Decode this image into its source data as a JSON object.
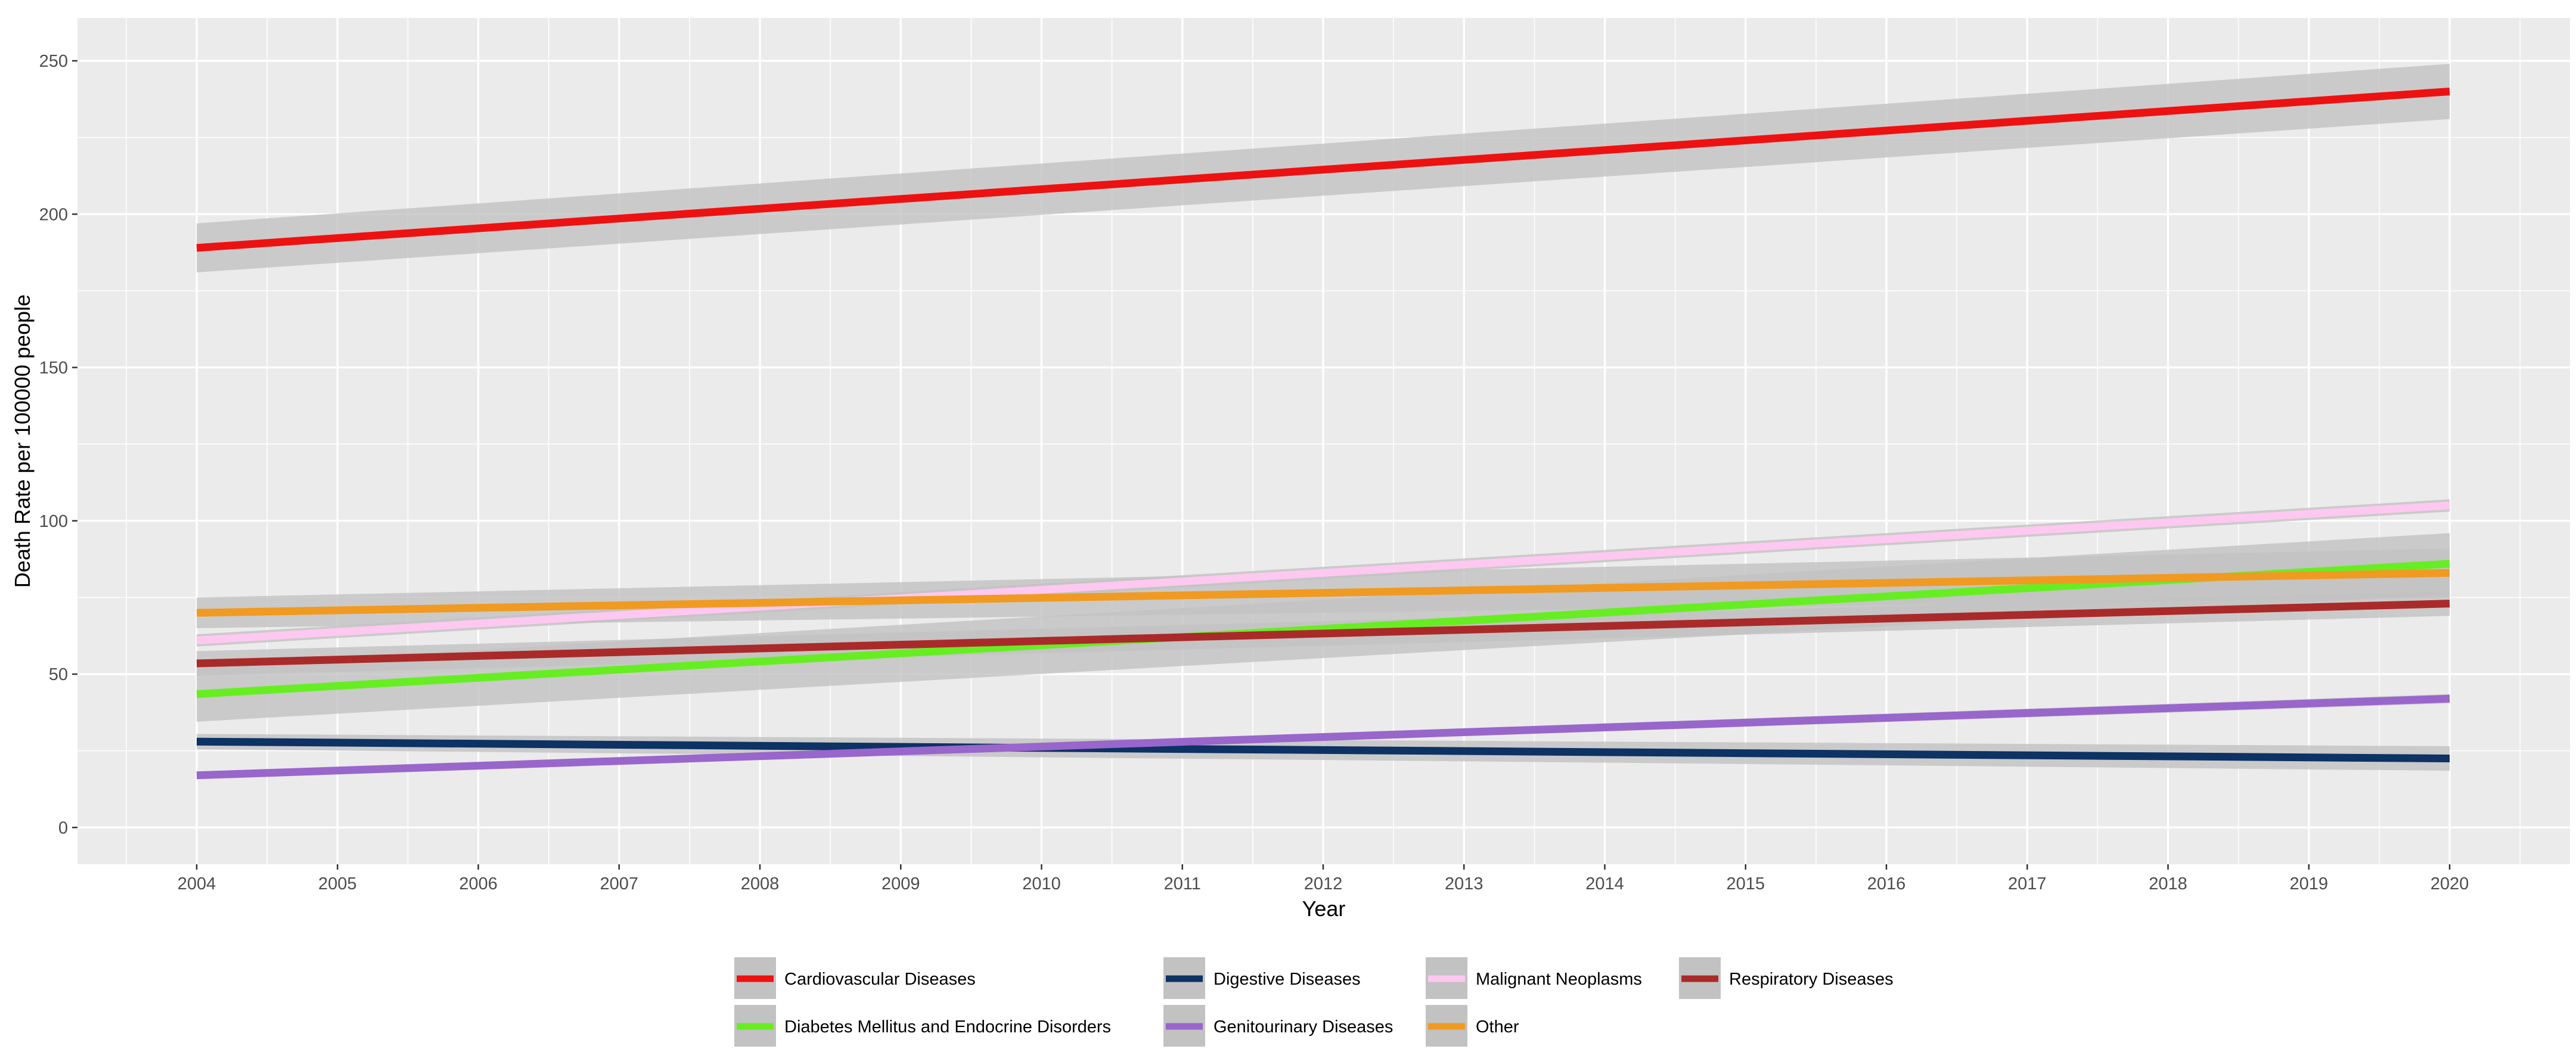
{
  "chart_data": {
    "type": "line",
    "title": "",
    "xlabel": "Year",
    "ylabel": "Death Rate per 100000 people",
    "xlim": [
      2003.2,
      2020.5
    ],
    "ylim": [
      -12,
      264
    ],
    "x_ticks": [
      2004,
      2005,
      2006,
      2007,
      2008,
      2009,
      2010,
      2011,
      2012,
      2013,
      2014,
      2015,
      2016,
      2017,
      2018,
      2019,
      2020
    ],
    "y_ticks": [
      0,
      50,
      100,
      150,
      200,
      250
    ],
    "grid": true,
    "panel_background": "#ebebeb",
    "ribbon_color": "#c2c2c2",
    "legend_position": "bottom",
    "series": [
      {
        "name": "Cardiovascular Diseases",
        "color": "#ee1111",
        "x": [
          2004,
          2020
        ],
        "y": [
          189,
          240
        ],
        "ci_start": 8,
        "ci_end": 9
      },
      {
        "name": "Diabetes Mellitus and Endocrine Disorders",
        "color": "#66ee22",
        "x": [
          2004,
          2020
        ],
        "y": [
          43.5,
          86
        ],
        "ci_start": 9,
        "ci_end": 10
      },
      {
        "name": "Digestive Diseases",
        "color": "#0d3264",
        "x": [
          2004,
          2020
        ],
        "y": [
          28,
          22.5
        ],
        "ci_start": 2.5,
        "ci_end": 4
      },
      {
        "name": "Genitourinary Diseases",
        "color": "#9966cc",
        "x": [
          2004,
          2020
        ],
        "y": [
          17,
          42
        ],
        "ci_start": 1,
        "ci_end": 1.5
      },
      {
        "name": "Malignant Neoplasms",
        "color": "#ffc8f0",
        "x": [
          2004,
          2020
        ],
        "y": [
          61,
          105
        ],
        "ci_start": 2,
        "ci_end": 2
      },
      {
        "name": "Other",
        "color": "#f09a22",
        "x": [
          2004,
          2020
        ],
        "y": [
          70,
          83
        ],
        "ci_start": 5,
        "ci_end": 8
      },
      {
        "name": "Respiratory Diseases",
        "color": "#aa2a2a",
        "x": [
          2004,
          2020
        ],
        "y": [
          53.5,
          73
        ],
        "ci_start": 4,
        "ci_end": 4
      }
    ]
  }
}
